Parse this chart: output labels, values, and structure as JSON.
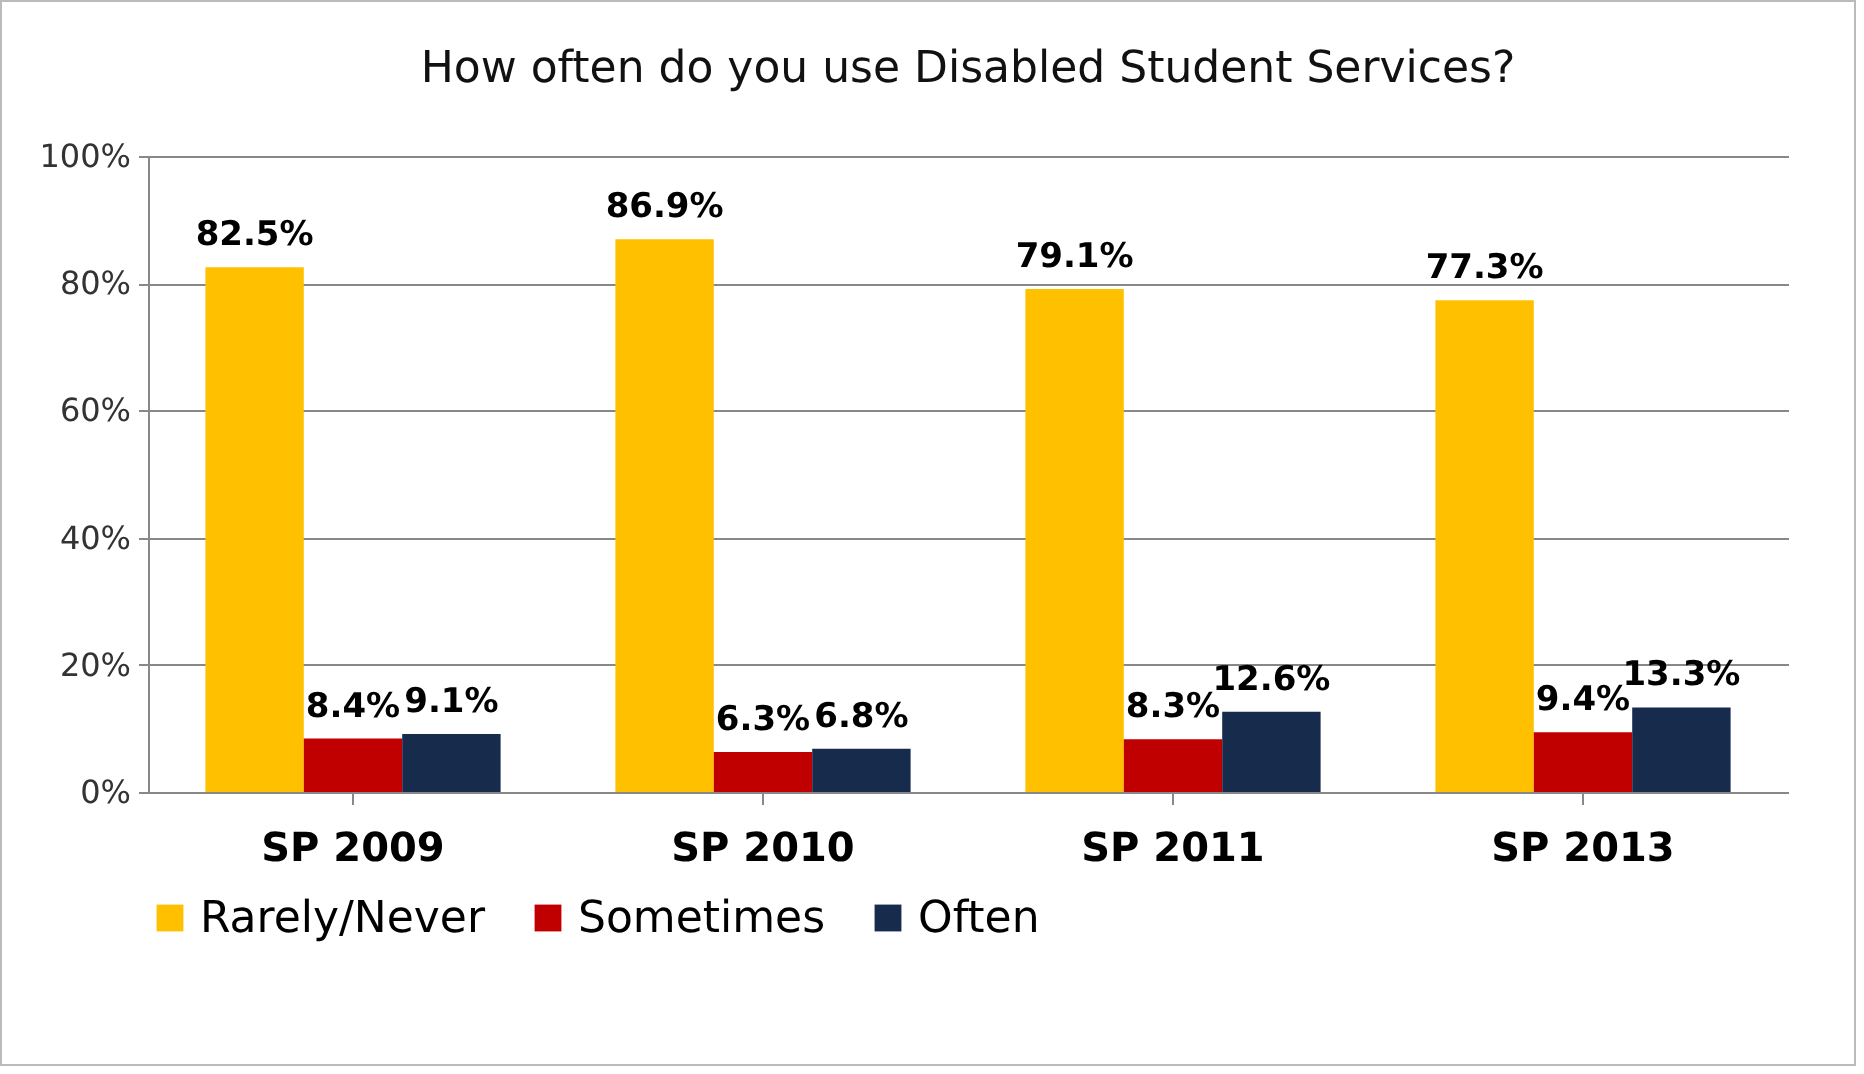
{
  "chart_data": {
    "type": "bar",
    "title": "How often do you use Disabled Student Services?",
    "categories": [
      "SP 2009",
      "SP 2010",
      "SP 2011",
      "SP 2013"
    ],
    "series": [
      {
        "name": "Rarely/Never",
        "color": "#ffc000",
        "values": [
          82.5,
          86.9,
          79.1,
          77.3
        ],
        "value_labels": [
          "82.5%",
          "86.9%",
          "79.1%",
          "77.3%"
        ]
      },
      {
        "name": "Sometimes",
        "color": "#c00000",
        "values": [
          8.4,
          6.3,
          8.3,
          9.4
        ],
        "value_labels": [
          "8.4%",
          "6.3%",
          "8.3%",
          "9.4%"
        ]
      },
      {
        "name": "Often",
        "color": "#172b4d",
        "values": [
          9.1,
          6.8,
          12.6,
          13.3
        ],
        "value_labels": [
          "9.1%",
          "6.8%",
          "12.6%",
          "13.3%"
        ]
      }
    ],
    "ylim": [
      0,
      100
    ],
    "yticks": [
      {
        "value": 0,
        "label": "0%"
      },
      {
        "value": 20,
        "label": "20%"
      },
      {
        "value": 40,
        "label": "40%"
      },
      {
        "value": 60,
        "label": "60%"
      },
      {
        "value": 80,
        "label": "80%"
      },
      {
        "value": 100,
        "label": "100%"
      }
    ],
    "grid": "y",
    "legend": "bottom"
  }
}
